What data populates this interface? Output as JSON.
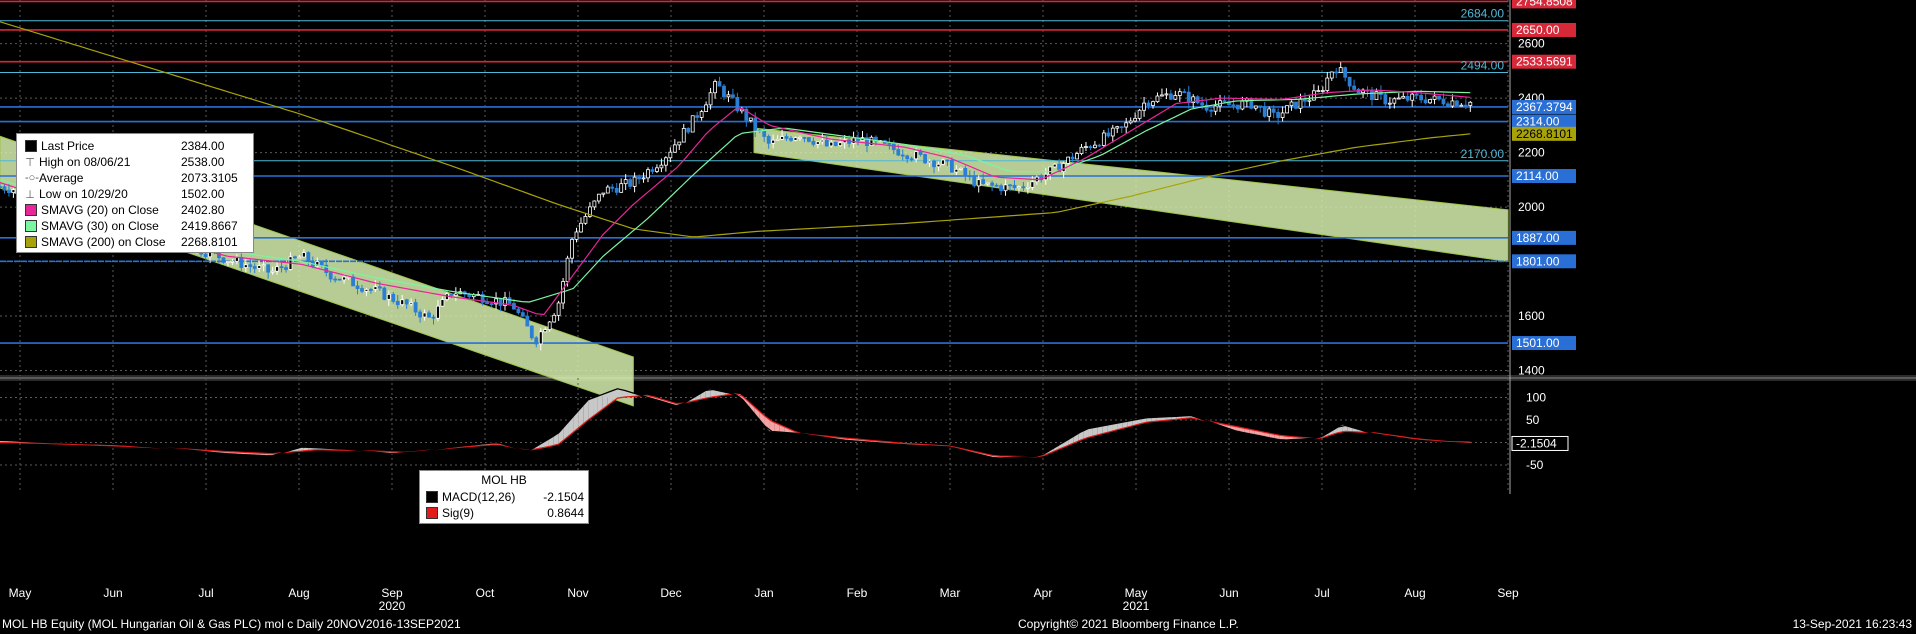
{
  "chart_data": [
    {
      "type": "candlestick",
      "security": "MOL HB Equity (MOL Hungarian Oil & Gas PLC) mol c",
      "period": "Daily 20NOV2016-13SEP2021",
      "ylim": [
        1380,
        2760
      ],
      "y_ticks": [
        1400,
        1600,
        1800,
        2000,
        2200,
        2400,
        2600
      ],
      "x_month_labels": [
        "May",
        "Jun",
        "Jul",
        "Aug",
        "Sep",
        "Oct",
        "Nov",
        "Dec",
        "Jan",
        "Feb",
        "Mar",
        "Apr",
        "May",
        "Jun",
        "Jul",
        "Aug",
        "Sep"
      ],
      "x_year_labels": [
        "2020",
        "2021"
      ],
      "grid": true,
      "legend_position": "top-left",
      "legend": [
        {
          "label": "Last Price",
          "value": "2384.00",
          "swatch": "#000000"
        },
        {
          "label": "High on 08/06/21",
          "value": "2538.00",
          "glyph": "⊤"
        },
        {
          "label": "Average",
          "value": "2073.3105",
          "glyph": "-○-"
        },
        {
          "label": "Low on 10/29/20",
          "value": "1502.00",
          "glyph": "⊥"
        },
        {
          "label": "SMAVG (20)  on Close",
          "value": "2402.80",
          "swatch": "#e8259a"
        },
        {
          "label": "SMAVG (30)  on Close",
          "value": "2419.8667",
          "swatch": "#7af5a0"
        },
        {
          "label": "SMAVG (200)  on Close",
          "value": "2268.8101",
          "swatch": "#a8a20a"
        }
      ],
      "horizontal_lines": [
        {
          "value": "2754.8508",
          "y": 2754.85,
          "color": "#d62839"
        },
        {
          "value": "2684.00",
          "y": 2684,
          "color": "#4fb8d8",
          "style": "thin",
          "label_inside": true
        },
        {
          "value": "2650.00",
          "y": 2650,
          "color": "#d62839"
        },
        {
          "value": "2533.5691",
          "y": 2533.57,
          "color": "#d62839"
        },
        {
          "value": "2494.00",
          "y": 2494,
          "color": "#4fb8d8",
          "style": "thin",
          "label_inside": true
        },
        {
          "value": "2367.3794",
          "y": 2367.38,
          "color": "#2a6fd6"
        },
        {
          "value": "2314.00",
          "y": 2314,
          "color": "#2a6fd6"
        },
        {
          "value": "2170.00",
          "y": 2170,
          "color": "#4fb8d8",
          "style": "thin",
          "label_inside": true
        },
        {
          "value": "2114.00",
          "y": 2114,
          "color": "#2a6fd6"
        },
        {
          "value": "1887.00",
          "y": 1887,
          "color": "#2a6fd6"
        },
        {
          "value": "1801.00",
          "y": 1801,
          "color": "#2a6fd6",
          "style": "dashed"
        },
        {
          "value": "1501.00",
          "y": 1501,
          "color": "#2a6fd6"
        }
      ],
      "axis_value_tags": [
        {
          "value": "2268.8101",
          "y": 2268.81,
          "color": "#a8a20a"
        }
      ],
      "price_anchors": [
        [
          0,
          2075
        ],
        [
          0.03,
          2050
        ],
        [
          0.06,
          1980
        ],
        [
          0.09,
          1940
        ],
        [
          0.12,
          1870
        ],
        [
          0.15,
          1810
        ],
        [
          0.18,
          1760
        ],
        [
          0.2,
          1820
        ],
        [
          0.22,
          1750
        ],
        [
          0.25,
          1690
        ],
        [
          0.27,
          1640
        ],
        [
          0.285,
          1590
        ],
        [
          0.3,
          1690
        ],
        [
          0.32,
          1670
        ],
        [
          0.34,
          1640
        ],
        [
          0.355,
          1510
        ],
        [
          0.37,
          1640
        ],
        [
          0.38,
          1900
        ],
        [
          0.4,
          2060
        ],
        [
          0.42,
          2090
        ],
        [
          0.44,
          2180
        ],
        [
          0.46,
          2320
        ],
        [
          0.475,
          2450
        ],
        [
          0.49,
          2360
        ],
        [
          0.51,
          2230
        ],
        [
          0.53,
          2270
        ],
        [
          0.55,
          2220
        ],
        [
          0.57,
          2250
        ],
        [
          0.6,
          2200
        ],
        [
          0.63,
          2150
        ],
        [
          0.65,
          2080
        ],
        [
          0.675,
          2070
        ],
        [
          0.7,
          2140
        ],
        [
          0.72,
          2220
        ],
        [
          0.745,
          2290
        ],
        [
          0.76,
          2390
        ],
        [
          0.78,
          2420
        ],
        [
          0.8,
          2370
        ],
        [
          0.83,
          2380
        ],
        [
          0.845,
          2330
        ],
        [
          0.86,
          2380
        ],
        [
          0.875,
          2420
        ],
        [
          0.885,
          2520
        ],
        [
          0.9,
          2430
        ],
        [
          0.92,
          2390
        ],
        [
          0.94,
          2400
        ],
        [
          0.96,
          2390
        ],
        [
          0.975,
          2384
        ]
      ]
    },
    {
      "type": "macd",
      "title": "MOL HB",
      "ylim": [
        -70,
        130
      ],
      "y_ticks": [
        100,
        50,
        0,
        -50
      ],
      "last_value_tag": "-2.1504",
      "legend": [
        {
          "label": "MACD(12,26)",
          "value": "-2.1504",
          "swatch": "#000000"
        },
        {
          "label": "Sig(9)",
          "value": "0.8644",
          "swatch": "#e21b1b"
        }
      ],
      "macd_anchors": [
        [
          0,
          5
        ],
        [
          0.03,
          0
        ],
        [
          0.08,
          -5
        ],
        [
          0.12,
          -15
        ],
        [
          0.15,
          -25
        ],
        [
          0.18,
          -30
        ],
        [
          0.2,
          -10
        ],
        [
          0.23,
          -15
        ],
        [
          0.26,
          -25
        ],
        [
          0.28,
          -20
        ],
        [
          0.3,
          -10
        ],
        [
          0.33,
          0
        ],
        [
          0.35,
          -20
        ],
        [
          0.37,
          20
        ],
        [
          0.39,
          95
        ],
        [
          0.41,
          120
        ],
        [
          0.43,
          100
        ],
        [
          0.45,
          80
        ],
        [
          0.47,
          120
        ],
        [
          0.49,
          105
        ],
        [
          0.51,
          25
        ],
        [
          0.53,
          20
        ],
        [
          0.56,
          5
        ],
        [
          0.6,
          -5
        ],
        [
          0.63,
          -10
        ],
        [
          0.66,
          -35
        ],
        [
          0.69,
          -30
        ],
        [
          0.72,
          30
        ],
        [
          0.76,
          55
        ],
        [
          0.79,
          60
        ],
        [
          0.82,
          25
        ],
        [
          0.85,
          5
        ],
        [
          0.875,
          10
        ],
        [
          0.89,
          40
        ],
        [
          0.91,
          20
        ],
        [
          0.94,
          5
        ],
        [
          0.96,
          0
        ],
        [
          0.975,
          -2.15
        ]
      ],
      "signal_anchors": [
        [
          0,
          0
        ],
        [
          0.03,
          -2
        ],
        [
          0.08,
          -8
        ],
        [
          0.12,
          -14
        ],
        [
          0.15,
          -20
        ],
        [
          0.18,
          -25
        ],
        [
          0.21,
          -16
        ],
        [
          0.24,
          -18
        ],
        [
          0.27,
          -22
        ],
        [
          0.3,
          -12
        ],
        [
          0.33,
          -4
        ],
        [
          0.35,
          -18
        ],
        [
          0.37,
          -5
        ],
        [
          0.39,
          50
        ],
        [
          0.41,
          100
        ],
        [
          0.43,
          105
        ],
        [
          0.45,
          85
        ],
        [
          0.47,
          100
        ],
        [
          0.49,
          110
        ],
        [
          0.51,
          50
        ],
        [
          0.53,
          20
        ],
        [
          0.56,
          10
        ],
        [
          0.6,
          -2
        ],
        [
          0.63,
          -8
        ],
        [
          0.66,
          -30
        ],
        [
          0.69,
          -32
        ],
        [
          0.72,
          10
        ],
        [
          0.76,
          45
        ],
        [
          0.79,
          55
        ],
        [
          0.82,
          35
        ],
        [
          0.85,
          15
        ],
        [
          0.875,
          8
        ],
        [
          0.89,
          25
        ],
        [
          0.91,
          22
        ],
        [
          0.94,
          8
        ],
        [
          0.96,
          2
        ],
        [
          0.975,
          0.86
        ]
      ]
    }
  ],
  "sma_anchors": {
    "sma20": [
      [
        0,
        2090
      ],
      [
        0.05,
        2000
      ],
      [
        0.1,
        1900
      ],
      [
        0.15,
        1820
      ],
      [
        0.2,
        1790
      ],
      [
        0.25,
        1720
      ],
      [
        0.3,
        1670
      ],
      [
        0.34,
        1640
      ],
      [
        0.36,
        1600
      ],
      [
        0.38,
        1750
      ],
      [
        0.4,
        1900
      ],
      [
        0.42,
        2010
      ],
      [
        0.45,
        2150
      ],
      [
        0.47,
        2280
      ],
      [
        0.49,
        2370
      ],
      [
        0.51,
        2300
      ],
      [
        0.55,
        2250
      ],
      [
        0.6,
        2220
      ],
      [
        0.63,
        2180
      ],
      [
        0.66,
        2110
      ],
      [
        0.69,
        2100
      ],
      [
        0.72,
        2180
      ],
      [
        0.75,
        2280
      ],
      [
        0.78,
        2380
      ],
      [
        0.81,
        2400
      ],
      [
        0.85,
        2395
      ],
      [
        0.88,
        2420
      ],
      [
        0.91,
        2430
      ],
      [
        0.94,
        2420
      ],
      [
        0.975,
        2402.8
      ]
    ],
    "sma30": [
      [
        0,
        2100
      ],
      [
        0.05,
        2020
      ],
      [
        0.1,
        1920
      ],
      [
        0.15,
        1840
      ],
      [
        0.2,
        1800
      ],
      [
        0.25,
        1740
      ],
      [
        0.3,
        1690
      ],
      [
        0.35,
        1650
      ],
      [
        0.38,
        1700
      ],
      [
        0.4,
        1820
      ],
      [
        0.43,
        1960
      ],
      [
        0.46,
        2120
      ],
      [
        0.49,
        2270
      ],
      [
        0.52,
        2290
      ],
      [
        0.56,
        2260
      ],
      [
        0.6,
        2230
      ],
      [
        0.64,
        2190
      ],
      [
        0.67,
        2130
      ],
      [
        0.7,
        2130
      ],
      [
        0.73,
        2190
      ],
      [
        0.76,
        2280
      ],
      [
        0.79,
        2360
      ],
      [
        0.82,
        2390
      ],
      [
        0.86,
        2395
      ],
      [
        0.9,
        2415
      ],
      [
        0.94,
        2425
      ],
      [
        0.975,
        2419.87
      ]
    ],
    "sma200": [
      [
        0,
        2680
      ],
      [
        0.1,
        2510
      ],
      [
        0.2,
        2340
      ],
      [
        0.3,
        2150
      ],
      [
        0.37,
        2010
      ],
      [
        0.42,
        1920
      ],
      [
        0.46,
        1890
      ],
      [
        0.5,
        1910
      ],
      [
        0.6,
        1940
      ],
      [
        0.7,
        1980
      ],
      [
        0.75,
        2040
      ],
      [
        0.8,
        2110
      ],
      [
        0.85,
        2170
      ],
      [
        0.9,
        2220
      ],
      [
        0.95,
        2255
      ],
      [
        0.975,
        2268.81
      ]
    ]
  },
  "channels": [
    {
      "x0": 0,
      "y0_top": 2260,
      "y0_bot": 2070,
      "x1": 0.42,
      "y1_top": 1450,
      "y1_bot": 1270
    },
    {
      "x0": 0.5,
      "y0_top": 2290,
      "y0_bot": 2200,
      "x1": 1,
      "y1_top": 1990,
      "y1_bot": 1800
    }
  ],
  "footer": {
    "left": "MOL HB Equity (MOL Hungarian Oil & Gas PLC) mol c  Daily 20NOV2016-13SEP2021",
    "center": "Copyright© 2021 Bloomberg Finance L.P.",
    "right": "13-Sep-2021 16:23:43"
  },
  "colors": {
    "background": "#000000",
    "grid": "#5a5a5a",
    "up": "#ffffff",
    "down": "#2a7fd4",
    "axis_text": "#ffffff"
  }
}
